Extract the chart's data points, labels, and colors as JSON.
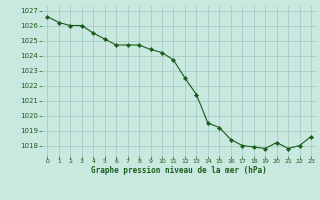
{
  "x": [
    0,
    1,
    2,
    3,
    4,
    5,
    6,
    7,
    8,
    9,
    10,
    11,
    12,
    13,
    14,
    15,
    16,
    17,
    18,
    19,
    20,
    21,
    22,
    23
  ],
  "y": [
    1026.6,
    1026.2,
    1026.0,
    1026.0,
    1025.5,
    1025.1,
    1024.7,
    1024.7,
    1024.7,
    1024.4,
    1024.2,
    1023.7,
    1022.5,
    1021.4,
    1019.5,
    1019.2,
    1018.4,
    1018.0,
    1017.9,
    1017.8,
    1018.2,
    1017.8,
    1018.0,
    1018.6
  ],
  "line_color": "#1a5c1a",
  "marker": "D",
  "marker_size": 2.2,
  "bg_color": "#c8e8e0",
  "grid_color": "#a0c8c0",
  "xlabel": "Graphe pression niveau de la mer (hPa)",
  "xlabel_color": "#1a5c1a",
  "tick_color": "#1a5c1a",
  "ylim": [
    1017.3,
    1027.3
  ],
  "yticks": [
    1018,
    1019,
    1020,
    1021,
    1022,
    1023,
    1024,
    1025,
    1026,
    1027
  ],
  "xlim": [
    -0.5,
    23.5
  ],
  "xticks": [
    0,
    1,
    2,
    3,
    4,
    5,
    6,
    7,
    8,
    9,
    10,
    11,
    12,
    13,
    14,
    15,
    16,
    17,
    18,
    19,
    20,
    21,
    22,
    23
  ]
}
